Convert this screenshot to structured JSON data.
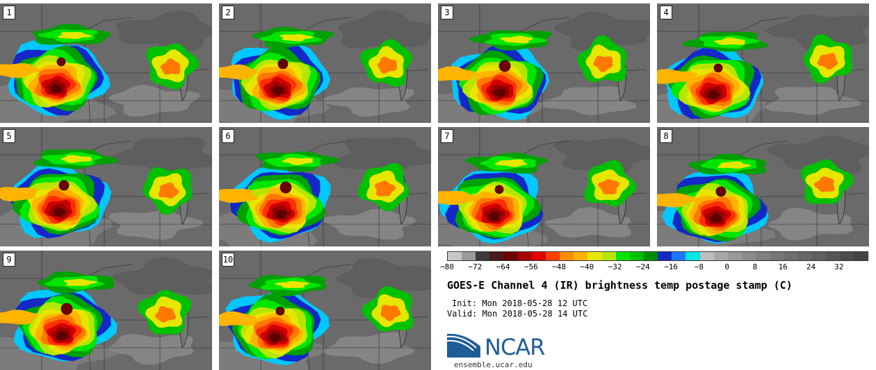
{
  "panels": [
    {
      "label": "1",
      "variant": 0
    },
    {
      "label": "2",
      "variant": 1
    },
    {
      "label": "3",
      "variant": 2
    },
    {
      "label": "4",
      "variant": 3
    },
    {
      "label": "5",
      "variant": 4
    },
    {
      "label": "6",
      "variant": 5
    },
    {
      "label": "7",
      "variant": 6
    },
    {
      "label": "8",
      "variant": 7
    },
    {
      "label": "9",
      "variant": 8
    },
    {
      "label": "10",
      "variant": 9
    }
  ],
  "colorbar": {
    "colors": [
      "#c8c8c8",
      "#9b9b9b",
      "#3a3a3a",
      "#4a1a1a",
      "#6e0000",
      "#aa0000",
      "#e00000",
      "#ff4000",
      "#ff8c00",
      "#ffb400",
      "#e6e600",
      "#b4e600",
      "#00e600",
      "#00c000",
      "#008c00",
      "#1428c8",
      "#1e78ff",
      "#00e6e6",
      "#bdbdbd",
      "#a8a8a8",
      "#999999",
      "#8c8c8c",
      "#808080",
      "#777777",
      "#6e6e6e",
      "#666666",
      "#5e5e5e",
      "#555555",
      "#4c4c4c",
      "#444444"
    ],
    "ticks": [
      "−80",
      "−72",
      "−64",
      "−56",
      "−48",
      "−40",
      "−32",
      "−24",
      "−16",
      "−8",
      "0",
      "8",
      "16",
      "24",
      "32"
    ]
  },
  "title": "GOES-E Channel 4 (IR) brightness temp postage stamp (C)",
  "init_line": "Init: Mon 2018-05-28 12 UTC",
  "valid_line": "Valid: Mon 2018-05-28 14 UTC",
  "logo": {
    "text": "NCAR",
    "color": "#1f5d99"
  },
  "website": "ensemble.ucar.edu"
}
